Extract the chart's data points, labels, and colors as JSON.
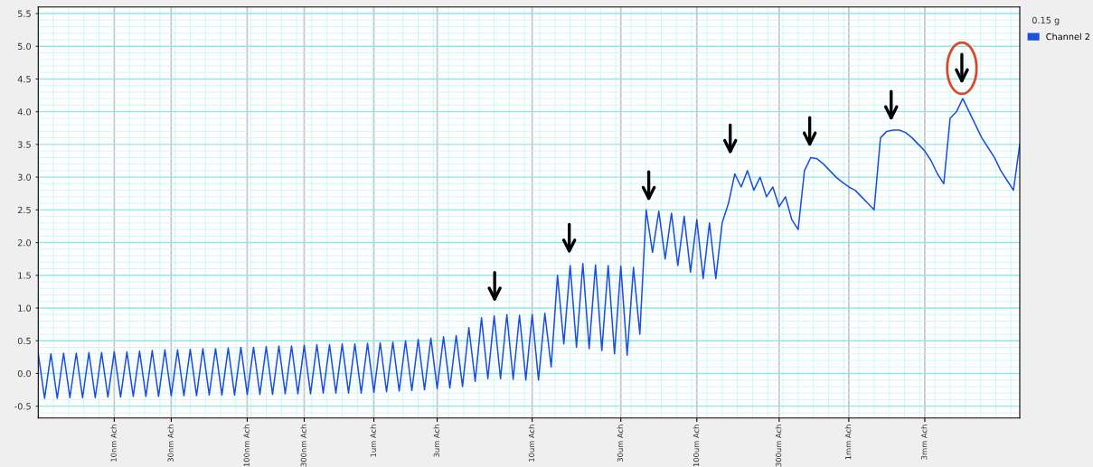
{
  "chart_data": {
    "type": "line",
    "categories": [
      null,
      null,
      null,
      null,
      null,
      null,
      null,
      null,
      null,
      null,
      null,
      null,
      "10nm Ach",
      null,
      null,
      null,
      null,
      null,
      null,
      null,
      null,
      "30nm Ach",
      null,
      null,
      null,
      null,
      null,
      null,
      null,
      null,
      null,
      null,
      null,
      "100nm Ach",
      null,
      null,
      null,
      null,
      null,
      null,
      null,
      null,
      "300nm Ach",
      null,
      null,
      null,
      null,
      null,
      null,
      null,
      null,
      null,
      null,
      "1um Ach",
      null,
      null,
      null,
      null,
      null,
      null,
      null,
      null,
      null,
      "3um Ach",
      null,
      null,
      null,
      null,
      null,
      null,
      null,
      null,
      null,
      null,
      null,
      null,
      null,
      null,
      "10um Ach",
      null,
      null,
      null,
      null,
      null,
      null,
      null,
      null,
      null,
      null,
      null,
      null,
      null,
      "30um Ach",
      null,
      null,
      null,
      null,
      null,
      null,
      null,
      null,
      null,
      null,
      null,
      "100um Ach",
      null,
      null,
      null,
      null,
      null,
      null,
      null,
      null,
      null,
      null,
      null,
      null,
      "300um Ach",
      null,
      null,
      null,
      null,
      null,
      null,
      null,
      null,
      null,
      null,
      "1mm Ach",
      null,
      null,
      null,
      null,
      null,
      null,
      null,
      null,
      null,
      null,
      null,
      "3mm Ach",
      null,
      null,
      null,
      null,
      null,
      null,
      null,
      null,
      null,
      null,
      null,
      null,
      null,
      null,
      null
    ],
    "series": [
      {
        "name": "Channel 2",
        "color": "#1a4fe0",
        "values": [
          0.3,
          -0.38,
          0.3,
          -0.38,
          0.31,
          -0.37,
          0.31,
          -0.37,
          0.32,
          -0.37,
          0.32,
          -0.36,
          0.33,
          -0.36,
          0.33,
          -0.35,
          0.34,
          -0.35,
          0.35,
          -0.35,
          0.36,
          -0.34,
          0.36,
          -0.34,
          0.37,
          -0.34,
          0.38,
          -0.33,
          0.38,
          -0.33,
          0.39,
          -0.33,
          0.4,
          -0.32,
          0.4,
          -0.32,
          0.41,
          -0.32,
          0.42,
          -0.31,
          0.42,
          -0.31,
          0.43,
          -0.31,
          0.44,
          -0.3,
          0.44,
          -0.3,
          0.45,
          -0.3,
          0.45,
          -0.3,
          0.46,
          -0.29,
          0.47,
          -0.28,
          0.48,
          -0.27,
          0.5,
          -0.26,
          0.52,
          -0.25,
          0.54,
          -0.23,
          0.56,
          -0.22,
          0.58,
          -0.2,
          0.7,
          -0.12,
          0.85,
          -0.08,
          0.88,
          -0.08,
          0.9,
          -0.09,
          0.89,
          -0.1,
          0.9,
          -0.1,
          0.92,
          0.1,
          1.5,
          0.45,
          1.65,
          0.4,
          1.68,
          0.38,
          1.66,
          0.35,
          1.65,
          0.3,
          1.64,
          0.28,
          1.62,
          0.6,
          2.5,
          1.85,
          2.48,
          1.75,
          2.45,
          1.65,
          2.4,
          1.55,
          2.35,
          1.45,
          2.3,
          1.45,
          2.3,
          2.6,
          3.05,
          2.85,
          3.1,
          2.8,
          3.0,
          2.7,
          2.85,
          2.55,
          2.7,
          2.35,
          2.2,
          3.1,
          3.3,
          3.28,
          3.2,
          3.1,
          3.0,
          2.92,
          2.85,
          2.8,
          2.7,
          2.6,
          2.5,
          3.6,
          3.7,
          3.72,
          3.72,
          3.68,
          3.6,
          3.5,
          3.4,
          3.25,
          3.05,
          2.9,
          3.9,
          4.0,
          4.2,
          4.0,
          3.8,
          3.6,
          3.45,
          3.3,
          3.1,
          2.95,
          2.8,
          3.5
        ]
      }
    ],
    "ylim": [
      -0.68,
      5.6
    ],
    "yticks": [
      {
        "value": -0.5,
        "label": "-0.5"
      },
      {
        "value": 0,
        "label": "0.0"
      },
      {
        "value": 0.5,
        "label": "0.5"
      },
      {
        "value": 1,
        "label": "1.0"
      },
      {
        "value": 1.5,
        "label": "1.5"
      },
      {
        "value": 2,
        "label": "2.0"
      },
      {
        "value": 2.5,
        "label": "2.5"
      },
      {
        "value": 3,
        "label": "3.0"
      },
      {
        "value": 3.5,
        "label": "3.5"
      },
      {
        "value": 4,
        "label": "4.0"
      },
      {
        "value": 4.5,
        "label": "4.5"
      },
      {
        "value": 5,
        "label": "5.0"
      },
      {
        "value": 5.5,
        "label": "5.5"
      }
    ],
    "grid": true,
    "legend": "top right",
    "annotations": [
      "0.15 g"
    ]
  }
}
